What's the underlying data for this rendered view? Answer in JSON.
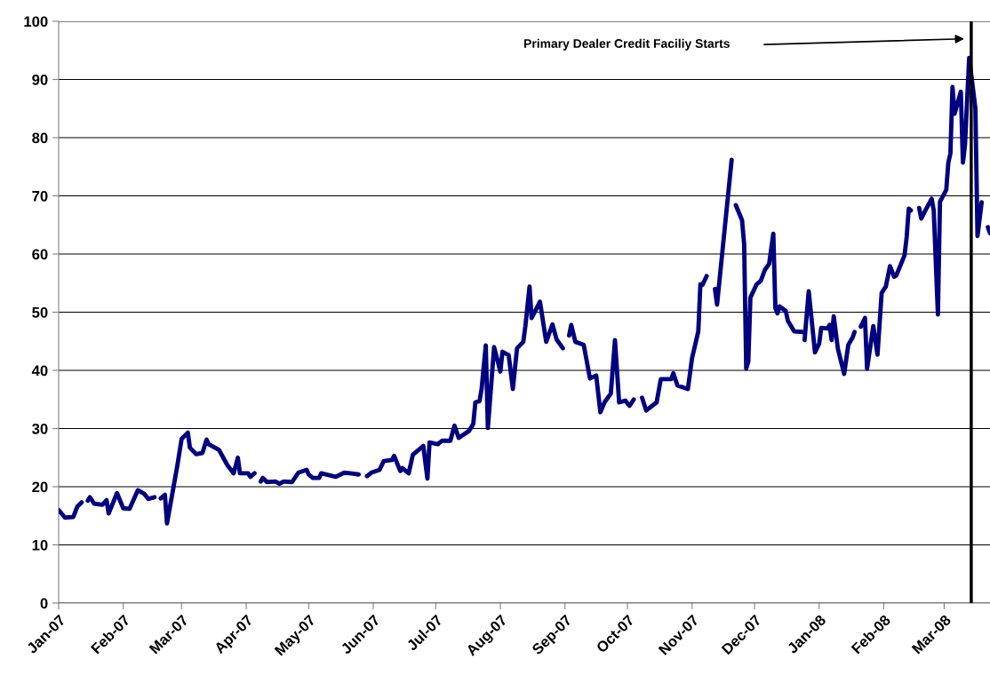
{
  "chart_data": {
    "type": "line",
    "x": [
      "2007-01-01",
      "2007-01-04",
      "2007-01-08",
      "2007-01-10",
      "2007-01-12",
      null,
      "2007-01-15",
      "2007-01-16",
      "2007-01-18",
      "2007-01-22",
      "2007-01-24",
      "2007-01-25",
      "2007-01-29",
      "2007-02-01",
      "2007-02-04",
      "2007-02-08",
      "2007-02-11",
      "2007-02-13",
      "2007-02-16",
      null,
      "2007-02-19",
      "2007-02-21",
      "2007-02-22",
      "2007-02-25",
      "2007-02-27",
      "2007-03-01",
      "2007-03-04",
      "2007-03-05",
      "2007-03-08",
      "2007-03-11",
      "2007-03-13",
      "2007-03-14",
      "2007-03-19",
      "2007-03-21",
      "2007-03-23",
      "2007-03-26",
      "2007-03-28",
      "2007-03-29",
      "2007-04-02",
      "2007-04-03",
      "2007-04-05",
      null,
      "2007-04-08",
      "2007-04-09",
      "2007-04-11",
      "2007-04-15",
      "2007-04-17",
      "2007-04-19",
      "2007-04-23",
      "2007-04-26",
      "2007-04-30",
      "2007-05-01",
      "2007-05-03",
      "2007-05-06",
      "2007-05-07",
      "2007-05-14",
      "2007-05-18",
      "2007-05-21",
      "2007-05-25",
      null,
      "2007-05-29",
      "2007-05-31",
      "2007-06-04",
      "2007-06-06",
      "2007-06-10",
      "2007-06-11",
      "2007-06-14",
      "2007-06-15",
      "2007-06-18",
      "2007-06-20",
      "2007-06-25",
      "2007-06-27",
      "2007-06-28",
      "2007-07-02",
      "2007-07-04",
      "2007-07-08",
      "2007-07-10",
      "2007-07-12",
      "2007-07-17",
      "2007-07-19",
      "2007-07-20",
      "2007-07-22",
      "2007-07-23",
      "2007-07-25",
      "2007-07-26",
      "2007-07-29",
      "2007-08-01",
      "2007-08-02",
      "2007-08-05",
      "2007-08-07",
      "2007-08-09",
      "2007-08-12",
      "2007-08-13",
      "2007-08-15",
      "2007-08-16",
      "2007-08-20",
      "2007-08-23",
      "2007-08-26",
      "2007-08-28",
      "2007-08-31",
      null,
      "2007-09-03",
      "2007-09-04",
      "2007-09-06",
      "2007-09-10",
      "2007-09-13",
      "2007-09-16",
      "2007-09-18",
      "2007-09-20",
      "2007-09-23",
      "2007-09-25",
      "2007-09-27",
      "2007-09-30",
      "2007-10-02",
      "2007-10-04",
      null,
      "2007-10-08",
      "2007-10-10",
      "2007-10-15",
      "2007-10-17",
      "2007-10-22",
      "2007-10-23",
      "2007-10-25",
      "2007-10-30",
      "2007-11-01",
      "2007-11-04",
      "2007-11-05",
      "2007-11-06",
      "2007-11-08",
      null,
      "2007-11-12",
      "2007-11-13",
      "2007-11-20",
      null,
      "2007-11-22",
      "2007-11-25",
      "2007-11-26",
      "2007-11-27",
      "2007-11-28",
      "2007-11-29",
      "2007-12-02",
      "2007-12-04",
      "2007-12-06",
      "2007-12-08",
      "2007-12-10",
      "2007-12-11",
      "2007-12-12",
      "2007-12-13",
      "2007-12-16",
      "2007-12-17",
      "2007-12-20",
      "2007-12-24",
      null,
      "2007-12-25",
      "2007-12-27",
      "2007-12-30",
      "2008-01-01",
      "2008-01-02",
      "2008-01-05",
      "2008-01-06",
      "2008-01-07",
      "2008-01-08",
      "2008-01-10",
      "2008-01-13",
      "2008-01-15",
      "2008-01-17",
      "2008-01-18",
      null,
      "2008-01-21",
      "2008-01-23",
      "2008-01-24",
      "2008-01-27",
      "2008-01-29",
      "2008-01-31",
      "2008-02-02",
      "2008-02-04",
      "2008-02-06",
      "2008-02-07",
      "2008-02-11",
      "2008-02-12",
      "2008-02-13",
      "2008-02-14",
      null,
      "2008-02-18",
      "2008-02-19",
      "2008-02-21",
      "2008-02-24",
      "2008-02-25",
      "2008-02-27",
      "2008-02-28",
      "2008-03-02",
      "2008-03-03",
      "2008-03-04",
      "2008-03-05",
      "2008-03-06",
      "2008-03-09",
      "2008-03-10",
      "2008-03-11",
      "2008-03-13",
      "2008-03-16",
      "2008-03-17",
      "2008-03-19",
      null,
      "2008-03-22",
      "2008-03-23"
    ],
    "series": [
      {
        "color": "#000080",
        "values": [
          16.0,
          14.7,
          14.8,
          16.6,
          17.3,
          null,
          17.6,
          18.2,
          17.1,
          16.9,
          17.7,
          15.4,
          18.9,
          16.3,
          16.2,
          19.4,
          18.8,
          17.9,
          18.2,
          null,
          18.0,
          18.6,
          13.7,
          19.7,
          23.7,
          28.2,
          29.3,
          26.7,
          25.6,
          25.8,
          28.1,
          27.3,
          26.3,
          25.0,
          23.7,
          22.3,
          25.0,
          22.3,
          22.3,
          21.7,
          22.3,
          null,
          20.9,
          21.5,
          20.8,
          20.9,
          20.5,
          20.9,
          20.8,
          22.4,
          22.9,
          22.1,
          21.5,
          21.5,
          22.3,
          21.7,
          22.4,
          22.3,
          22.1,
          null,
          21.8,
          22.4,
          22.9,
          24.4,
          24.6,
          25.3,
          22.7,
          23.2,
          22.3,
          25.5,
          27.0,
          21.4,
          27.6,
          27.3,
          27.9,
          27.9,
          30.5,
          28.4,
          29.6,
          30.8,
          34.5,
          34.7,
          36.8,
          44.3,
          30.1,
          44.0,
          39.8,
          43.2,
          42.6,
          36.8,
          43.8,
          44.9,
          47.6,
          54.4,
          49.0,
          51.8,
          44.9,
          47.9,
          45.3,
          43.8,
          null,
          46.0,
          47.8,
          44.9,
          44.4,
          38.6,
          39.1,
          32.8,
          34.5,
          36.0,
          45.2,
          34.5,
          34.8,
          33.9,
          35.0,
          null,
          35.3,
          33.1,
          34.5,
          38.5,
          38.5,
          39.5,
          37.4,
          36.8,
          42.1,
          46.7,
          54.8,
          54.7,
          56.2,
          null,
          54.0,
          51.3,
          76.2,
          null,
          68.4,
          65.8,
          61.7,
          40.3,
          41.5,
          52.5,
          54.8,
          55.4,
          57.3,
          58.3,
          63.5,
          50.7,
          49.8,
          51.0,
          50.2,
          48.5,
          46.7,
          46.6,
          null,
          45.2,
          53.6,
          43.1,
          44.6,
          47.3,
          47.2,
          47.8,
          45.2,
          49.3,
          43.7,
          39.4,
          44.4,
          45.6,
          46.6,
          null,
          47.5,
          49.0,
          40.3,
          47.6,
          42.7,
          53.3,
          54.4,
          57.9,
          56.1,
          56.3,
          59.8,
          62.9,
          67.8,
          67.5,
          null,
          67.9,
          66.1,
          67.5,
          69.5,
          67.5,
          49.6,
          69.0,
          71.0,
          75.7,
          77.3,
          88.7,
          84.1,
          87.9,
          75.7,
          78.8,
          93.7,
          85.0,
          63.1,
          68.9,
          null,
          64.6,
          63.6
        ]
      }
    ],
    "xlim": [
      "2007-01-01",
      "2008-03-23"
    ],
    "xticks": [
      {
        "value": "2007-01-01",
        "label": "Jan-07"
      },
      {
        "value": "2007-02-01",
        "label": "Feb-07"
      },
      {
        "value": "2007-03-01",
        "label": "Mar-07"
      },
      {
        "value": "2007-04-01",
        "label": "Apr-07"
      },
      {
        "value": "2007-05-01",
        "label": "May-07"
      },
      {
        "value": "2007-06-01",
        "label": "Jun-07"
      },
      {
        "value": "2007-07-01",
        "label": "Jul-07"
      },
      {
        "value": "2007-08-01",
        "label": "Aug-07"
      },
      {
        "value": "2007-09-01",
        "label": "Sep-07"
      },
      {
        "value": "2007-10-01",
        "label": "Oct-07"
      },
      {
        "value": "2007-11-01",
        "label": "Nov-07"
      },
      {
        "value": "2007-12-01",
        "label": "Dec-07"
      },
      {
        "value": "2008-01-01",
        "label": "Jan-08"
      },
      {
        "value": "2008-02-01",
        "label": "Feb-08"
      },
      {
        "value": "2008-03-01",
        "label": "Mar-08"
      }
    ],
    "ylim": [
      0,
      100
    ],
    "yticks": [
      0,
      10,
      20,
      30,
      40,
      50,
      60,
      70,
      80,
      90,
      100
    ],
    "grid": "y",
    "ref_lines": [
      {
        "axis": "x",
        "value": "2008-03-14",
        "color": "#000000"
      }
    ],
    "annotations": [
      "Primary Dealer Credit Faciliy Starts"
    ]
  }
}
